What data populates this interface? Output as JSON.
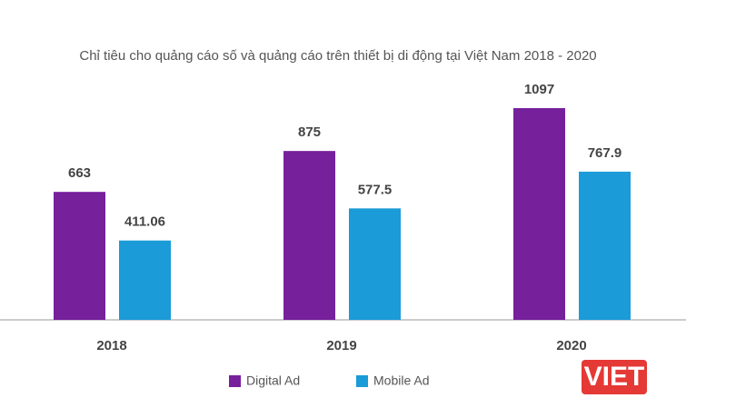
{
  "chart_data": {
    "type": "bar",
    "title": "Chỉ tiêu cho quảng cáo số và quảng cáo trên thiết bị di động tại Việt Nam 2018 - 2020",
    "categories": [
      "2018",
      "2019",
      "2020"
    ],
    "series": [
      {
        "name": "Digital Ad",
        "color": "#76209c",
        "values": [
          663,
          875,
          1097
        ]
      },
      {
        "name": "Mobile Ad",
        "color": "#1b9bd7",
        "values": [
          411.06,
          577.5,
          767.9
        ]
      }
    ],
    "watermark": "VIET"
  }
}
